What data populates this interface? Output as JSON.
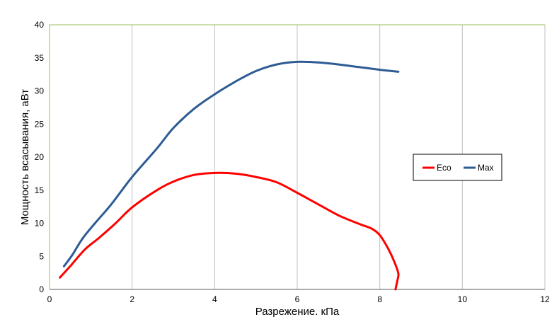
{
  "chart_data": {
    "type": "line",
    "xlabel": "Разрежение. кПа",
    "ylabel": "Мощность всасывания, аВт",
    "xlim": [
      0,
      12
    ],
    "ylim": [
      0,
      40
    ],
    "xticks": [
      0,
      2,
      4,
      6,
      8,
      10,
      12
    ],
    "yticks": [
      0,
      5,
      10,
      15,
      20,
      25,
      30,
      35,
      40
    ],
    "grid": "vertical",
    "legend_position": "right",
    "series": [
      {
        "name": "Eco",
        "color": "#ff0000",
        "points": [
          [
            0.25,
            1.8
          ],
          [
            0.5,
            3.5
          ],
          [
            0.85,
            6.0
          ],
          [
            1.2,
            7.8
          ],
          [
            1.6,
            10.0
          ],
          [
            2.0,
            12.4
          ],
          [
            2.6,
            15.0
          ],
          [
            3.0,
            16.3
          ],
          [
            3.5,
            17.3
          ],
          [
            4.0,
            17.6
          ],
          [
            4.5,
            17.5
          ],
          [
            5.0,
            17.0
          ],
          [
            5.5,
            16.2
          ],
          [
            6.0,
            14.6
          ],
          [
            6.5,
            12.9
          ],
          [
            7.0,
            11.2
          ],
          [
            7.5,
            9.9
          ],
          [
            7.8,
            9.2
          ],
          [
            8.0,
            8.2
          ],
          [
            8.2,
            6.2
          ],
          [
            8.35,
            4.2
          ],
          [
            8.45,
            2.4
          ],
          [
            8.42,
            1.2
          ],
          [
            8.38,
            0.0
          ]
        ]
      },
      {
        "name": "Max",
        "color": "#2e5b94",
        "points": [
          [
            0.35,
            3.5
          ],
          [
            0.55,
            5.2
          ],
          [
            0.8,
            7.7
          ],
          [
            1.1,
            10.0
          ],
          [
            1.5,
            12.9
          ],
          [
            2.0,
            17.0
          ],
          [
            2.6,
            21.3
          ],
          [
            3.0,
            24.4
          ],
          [
            3.5,
            27.3
          ],
          [
            4.0,
            29.5
          ],
          [
            4.5,
            31.4
          ],
          [
            5.0,
            33.0
          ],
          [
            5.5,
            34.0
          ],
          [
            6.0,
            34.4
          ],
          [
            6.5,
            34.3
          ],
          [
            7.0,
            34.0
          ],
          [
            7.5,
            33.6
          ],
          [
            8.0,
            33.2
          ],
          [
            8.45,
            32.9
          ]
        ]
      }
    ]
  }
}
